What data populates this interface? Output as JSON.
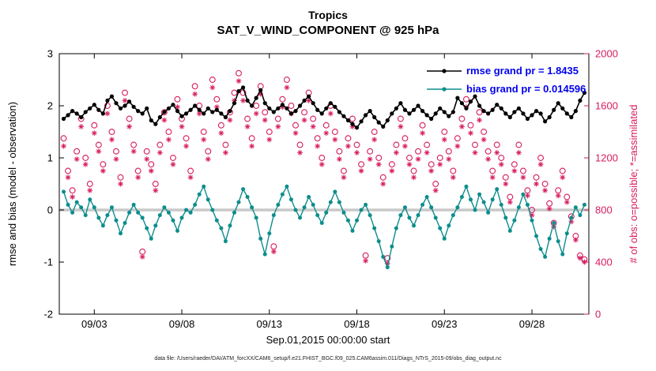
{
  "caption": "data file: /Users/raeder/DAI/ATM_forcXX/CAM6_setup/f.e21.FHIST_BGC.f09_025.CAM6assim.011/Diags_NTrS_2015-09/obs_diag_output.nc",
  "chart_data": {
    "type": "line",
    "title": "Tropics",
    "subtitle": "SAT_V_WIND_COMPONENT @ 925 hPa",
    "xlabel": "Sep.01,2015 00:00:00 start",
    "ylabel_left": "rmse and bias (model - observation)",
    "ylabel_right": "# of obs: o=possible; *=assimilated",
    "ylim_left": [
      -2,
      3
    ],
    "ylim_right": [
      0,
      2000
    ],
    "yticks_left": [
      -2,
      -1,
      0,
      1,
      2,
      3
    ],
    "yticks_right": [
      0,
      400,
      800,
      1200,
      1600,
      2000
    ],
    "xlim_days": [
      0,
      30.25
    ],
    "x_start_day": 0.25,
    "x_step_day": 0.25,
    "xticks": [
      {
        "day": 2,
        "label": "09/03"
      },
      {
        "day": 7,
        "label": "09/08"
      },
      {
        "day": 12,
        "label": "09/13"
      },
      {
        "day": 17,
        "label": "09/18"
      },
      {
        "day": 22,
        "label": "09/23"
      },
      {
        "day": 27,
        "label": "09/28"
      }
    ],
    "grid": false,
    "zero_line_color": "#c9c9c9",
    "axis_color_left": "#000000",
    "axis_color_right": "#d81b60",
    "legend": {
      "position": "top-right-inside",
      "color": "#0000ee",
      "items": [
        {
          "label": "rmse grand pr = 1.8435",
          "line_color": "#000000"
        },
        {
          "label": "bias grand pr = 0.014596",
          "line_color": "#0d8d8d"
        }
      ]
    },
    "series": [
      {
        "name": "rmse",
        "axis": "left",
        "color": "#000000",
        "marker": "filled-circle",
        "values": [
          1.75,
          1.82,
          1.9,
          1.85,
          1.78,
          1.88,
          1.95,
          2.02,
          1.92,
          1.85,
          2.1,
          2.18,
          2.05,
          1.95,
          2.0,
          2.08,
          1.98,
          1.9,
          1.85,
          1.95,
          1.72,
          1.65,
          1.78,
          1.88,
          1.95,
          2.02,
          1.9,
          1.8,
          1.85,
          1.92,
          2.0,
          1.92,
          1.85,
          1.95,
          1.88,
          1.92,
          1.85,
          1.78,
          1.9,
          2.05,
          2.28,
          2.35,
          2.1,
          2.0,
          2.15,
          2.3,
          2.05,
          1.95,
          1.88,
          1.95,
          2.02,
          1.95,
          1.85,
          1.9,
          2.0,
          2.1,
          2.18,
          2.05,
          1.92,
          1.85,
          1.95,
          2.05,
          1.98,
          1.88,
          1.8,
          1.72,
          1.65,
          1.58,
          1.7,
          1.82,
          1.9,
          1.78,
          1.68,
          1.6,
          1.72,
          1.85,
          1.95,
          2.05,
          1.92,
          1.85,
          1.92,
          2.0,
          1.9,
          1.82,
          1.75,
          1.85,
          1.95,
          1.88,
          1.8,
          1.88,
          2.15,
          2.05,
          1.95,
          2.08,
          2.18,
          2.0,
          1.9,
          1.85,
          1.92,
          2.02,
          1.95,
          1.85,
          1.78,
          1.88,
          1.95,
          1.85,
          1.75,
          1.82,
          1.9,
          1.85,
          1.7,
          1.78,
          1.92,
          2.05,
          1.95,
          1.85,
          1.78,
          1.9,
          2.1,
          2.25
        ]
      },
      {
        "name": "bias",
        "axis": "left",
        "color": "#0d8d8d",
        "marker": "filled-circle",
        "values": [
          0.35,
          0.1,
          -0.05,
          0.15,
          0.05,
          -0.1,
          0.2,
          0.05,
          -0.15,
          -0.3,
          -0.1,
          0.05,
          -0.2,
          -0.45,
          -0.25,
          -0.05,
          0.1,
          -0.05,
          -0.15,
          -0.35,
          -0.55,
          -0.3,
          -0.1,
          0.05,
          -0.05,
          -0.2,
          -0.4,
          -0.15,
          0.0,
          -0.05,
          0.1,
          0.3,
          0.45,
          0.2,
          0.0,
          -0.2,
          -0.35,
          -0.6,
          -0.3,
          -0.05,
          0.15,
          0.4,
          0.25,
          0.05,
          -0.15,
          -0.55,
          -0.85,
          -0.45,
          -0.1,
          0.1,
          0.3,
          0.45,
          0.2,
          0.0,
          -0.15,
          0.05,
          0.25,
          0.1,
          -0.1,
          -0.25,
          -0.05,
          0.15,
          0.35,
          0.15,
          -0.05,
          -0.2,
          -0.4,
          -0.2,
          0.0,
          0.1,
          -0.1,
          -0.35,
          -0.6,
          -0.9,
          -1.1,
          -0.7,
          -0.35,
          -0.1,
          0.05,
          -0.15,
          -0.3,
          -0.1,
          0.1,
          0.25,
          0.05,
          -0.15,
          -0.35,
          -0.55,
          -0.3,
          -0.1,
          0.05,
          0.25,
          0.45,
          0.2,
          0.0,
          0.3,
          0.15,
          -0.05,
          0.2,
          0.4,
          0.1,
          -0.15,
          -0.4,
          -0.2,
          0.05,
          0.3,
          0.1,
          -0.2,
          -0.5,
          -0.75,
          -0.9,
          -0.55,
          -0.25,
          -0.6,
          -0.85,
          -0.45,
          -0.15,
          0.05,
          -0.1,
          0.1
        ]
      },
      {
        "name": "possible obs",
        "axis": "right",
        "color": "#d81b60",
        "marker": "open-circle",
        "values": [
          1350,
          1100,
          950,
          1250,
          1500,
          1200,
          1000,
          1450,
          1300,
          1150,
          1600,
          1400,
          1250,
          1050,
          1700,
          1500,
          1300,
          1100,
          480,
          1250,
          1150,
          1000,
          1300,
          1550,
          1400,
          1200,
          1650,
          1500,
          1350,
          1100,
          1750,
          1600,
          1400,
          1250,
          1800,
          1650,
          1450,
          1300,
          1550,
          1700,
          1850,
          1700,
          1500,
          1350,
          1600,
          1750,
          1550,
          1400,
          520,
          1500,
          1650,
          1800,
          1600,
          1450,
          1300,
          1550,
          1700,
          1500,
          1350,
          1200,
          1450,
          1600,
          1400,
          1250,
          1100,
          1350,
          1500,
          1300,
          1150,
          450,
          1250,
          1400,
          1200,
          1050,
          430,
          1150,
          1300,
          1500,
          1350,
          1200,
          1100,
          1250,
          1450,
          1300,
          1150,
          1000,
          1200,
          1400,
          1250,
          1100,
          1350,
          1500,
          1650,
          1450,
          1300,
          1550,
          1400,
          1250,
          1100,
          1300,
          1200,
          1050,
          900,
          1150,
          1300,
          1100,
          950,
          800,
          1050,
          1200,
          1000,
          850,
          700,
          950,
          1100,
          900,
          750,
          600,
          450,
          420
        ]
      },
      {
        "name": "assimilated obs",
        "axis": "right",
        "color": "#d81b60",
        "marker": "asterisk",
        "values": [
          1290,
          1050,
          900,
          1190,
          1440,
          1150,
          950,
          1390,
          1250,
          1100,
          1540,
          1340,
          1190,
          1000,
          1640,
          1440,
          1250,
          1050,
          440,
          1190,
          1100,
          950,
          1240,
          1490,
          1340,
          1150,
          1590,
          1440,
          1290,
          1050,
          1690,
          1540,
          1340,
          1190,
          1740,
          1590,
          1390,
          1240,
          1490,
          1640,
          1790,
          1640,
          1440,
          1290,
          1540,
          1690,
          1490,
          1340,
          480,
          1440,
          1590,
          1740,
          1540,
          1390,
          1240,
          1490,
          1640,
          1440,
          1290,
          1150,
          1390,
          1540,
          1340,
          1190,
          1050,
          1290,
          1440,
          1240,
          1100,
          410,
          1190,
          1340,
          1150,
          1000,
          390,
          1100,
          1240,
          1440,
          1290,
          1150,
          1050,
          1190,
          1390,
          1240,
          1100,
          950,
          1150,
          1340,
          1190,
          1050,
          1290,
          1440,
          1590,
          1390,
          1240,
          1490,
          1340,
          1190,
          1050,
          1240,
          1150,
          1000,
          860,
          1100,
          1240,
          1050,
          910,
          760,
          1000,
          1150,
          950,
          810,
          670,
          910,
          1050,
          860,
          710,
          570,
          430,
          400
        ]
      }
    ]
  }
}
